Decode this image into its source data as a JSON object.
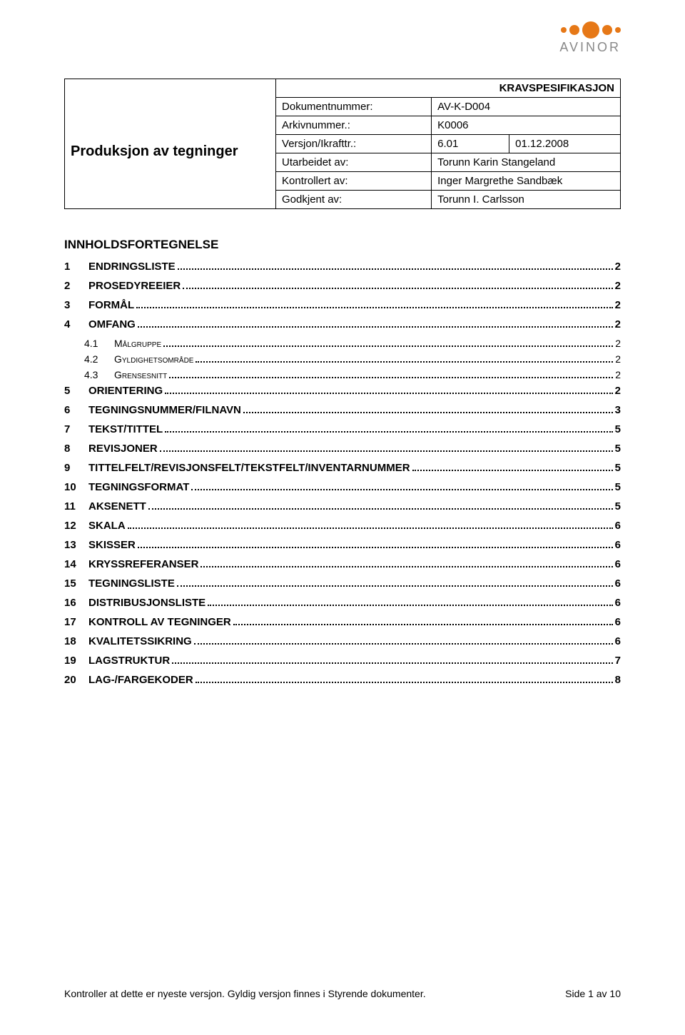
{
  "logo": {
    "text": "AVINOR",
    "text_color": "#8a8a8a",
    "dots": [
      {
        "size": 8,
        "color": "#e67817"
      },
      {
        "size": 14,
        "color": "#e67817"
      },
      {
        "size": 24,
        "color": "#e67817"
      },
      {
        "size": 14,
        "color": "#e67817"
      },
      {
        "size": 8,
        "color": "#e67817"
      }
    ]
  },
  "header": {
    "doc_type": "KRAVSPESIFIKASJON",
    "title": "Produksjon av tegninger",
    "rows": [
      {
        "label": "Dokumentnummer:",
        "value": "AV-K-D004"
      },
      {
        "label": "Arkivnummer.:",
        "value": "K0006"
      },
      {
        "label": "Versjon/Ikrafttr.:",
        "v1": "6.01",
        "v2": "01.12.2008"
      },
      {
        "label": "Utarbeidet av:",
        "value": "Torunn Karin Stangeland"
      },
      {
        "label": "Kontrollert av:",
        "value": "Inger Margrethe Sandbæk"
      },
      {
        "label": "Godkjent av:",
        "value": "Torunn I. Carlsson"
      }
    ]
  },
  "toc_title": "INNHOLDSFORTEGNELSE",
  "toc": [
    {
      "num": "1",
      "label": "ENDRINGSLISTE",
      "page": "2"
    },
    {
      "num": "2",
      "label": "PROSEDYREEIER",
      "page": "2"
    },
    {
      "num": "3",
      "label": "FORMÅL",
      "page": "2"
    },
    {
      "num": "4",
      "label": "OMFANG",
      "page": "2"
    },
    {
      "num": "4.1",
      "label": "Målgruppe",
      "page": "2",
      "sub": true
    },
    {
      "num": "4.2",
      "label": "Gyldighetsområde",
      "page": "2",
      "sub": true
    },
    {
      "num": "4.3",
      "label": "Grensesnitt",
      "page": "2",
      "sub": true
    },
    {
      "num": "5",
      "label": "ORIENTERING",
      "page": "2"
    },
    {
      "num": "6",
      "label": "TEGNINGSNUMMER/FILNAVN",
      "page": "3"
    },
    {
      "num": "7",
      "label": "TEKST/TITTEL",
      "page": "5"
    },
    {
      "num": "8",
      "label": "REVISJONER",
      "page": "5"
    },
    {
      "num": "9",
      "label": "TITTELFELT/REVISJONSFELT/TEKSTFELT/INVENTARNUMMER",
      "page": "5"
    },
    {
      "num": "10",
      "label": "TEGNINGSFORMAT",
      "page": "5"
    },
    {
      "num": "11",
      "label": "AKSENETT",
      "page": "5"
    },
    {
      "num": "12",
      "label": "SKALA",
      "page": "6"
    },
    {
      "num": "13",
      "label": "SKISSER",
      "page": "6"
    },
    {
      "num": "14",
      "label": "KRYSSREFERANSER",
      "page": "6"
    },
    {
      "num": "15",
      "label": "TEGNINGSLISTE",
      "page": "6"
    },
    {
      "num": "16",
      "label": "DISTRIBUSJONSLISTE",
      "page": "6"
    },
    {
      "num": "17",
      "label": "KONTROLL AV TEGNINGER",
      "page": "6"
    },
    {
      "num": "18",
      "label": "KVALITETSSIKRING",
      "page": "6"
    },
    {
      "num": "19",
      "label": "LAGSTRUKTUR",
      "page": "7"
    },
    {
      "num": "20",
      "label": "LAG-/FARGEKODER",
      "page": "8"
    }
  ],
  "footer": {
    "left": "Kontroller at dette er nyeste versjon. Gyldig versjon finnes i Styrende dokumenter.",
    "right": "Side 1 av 10"
  }
}
